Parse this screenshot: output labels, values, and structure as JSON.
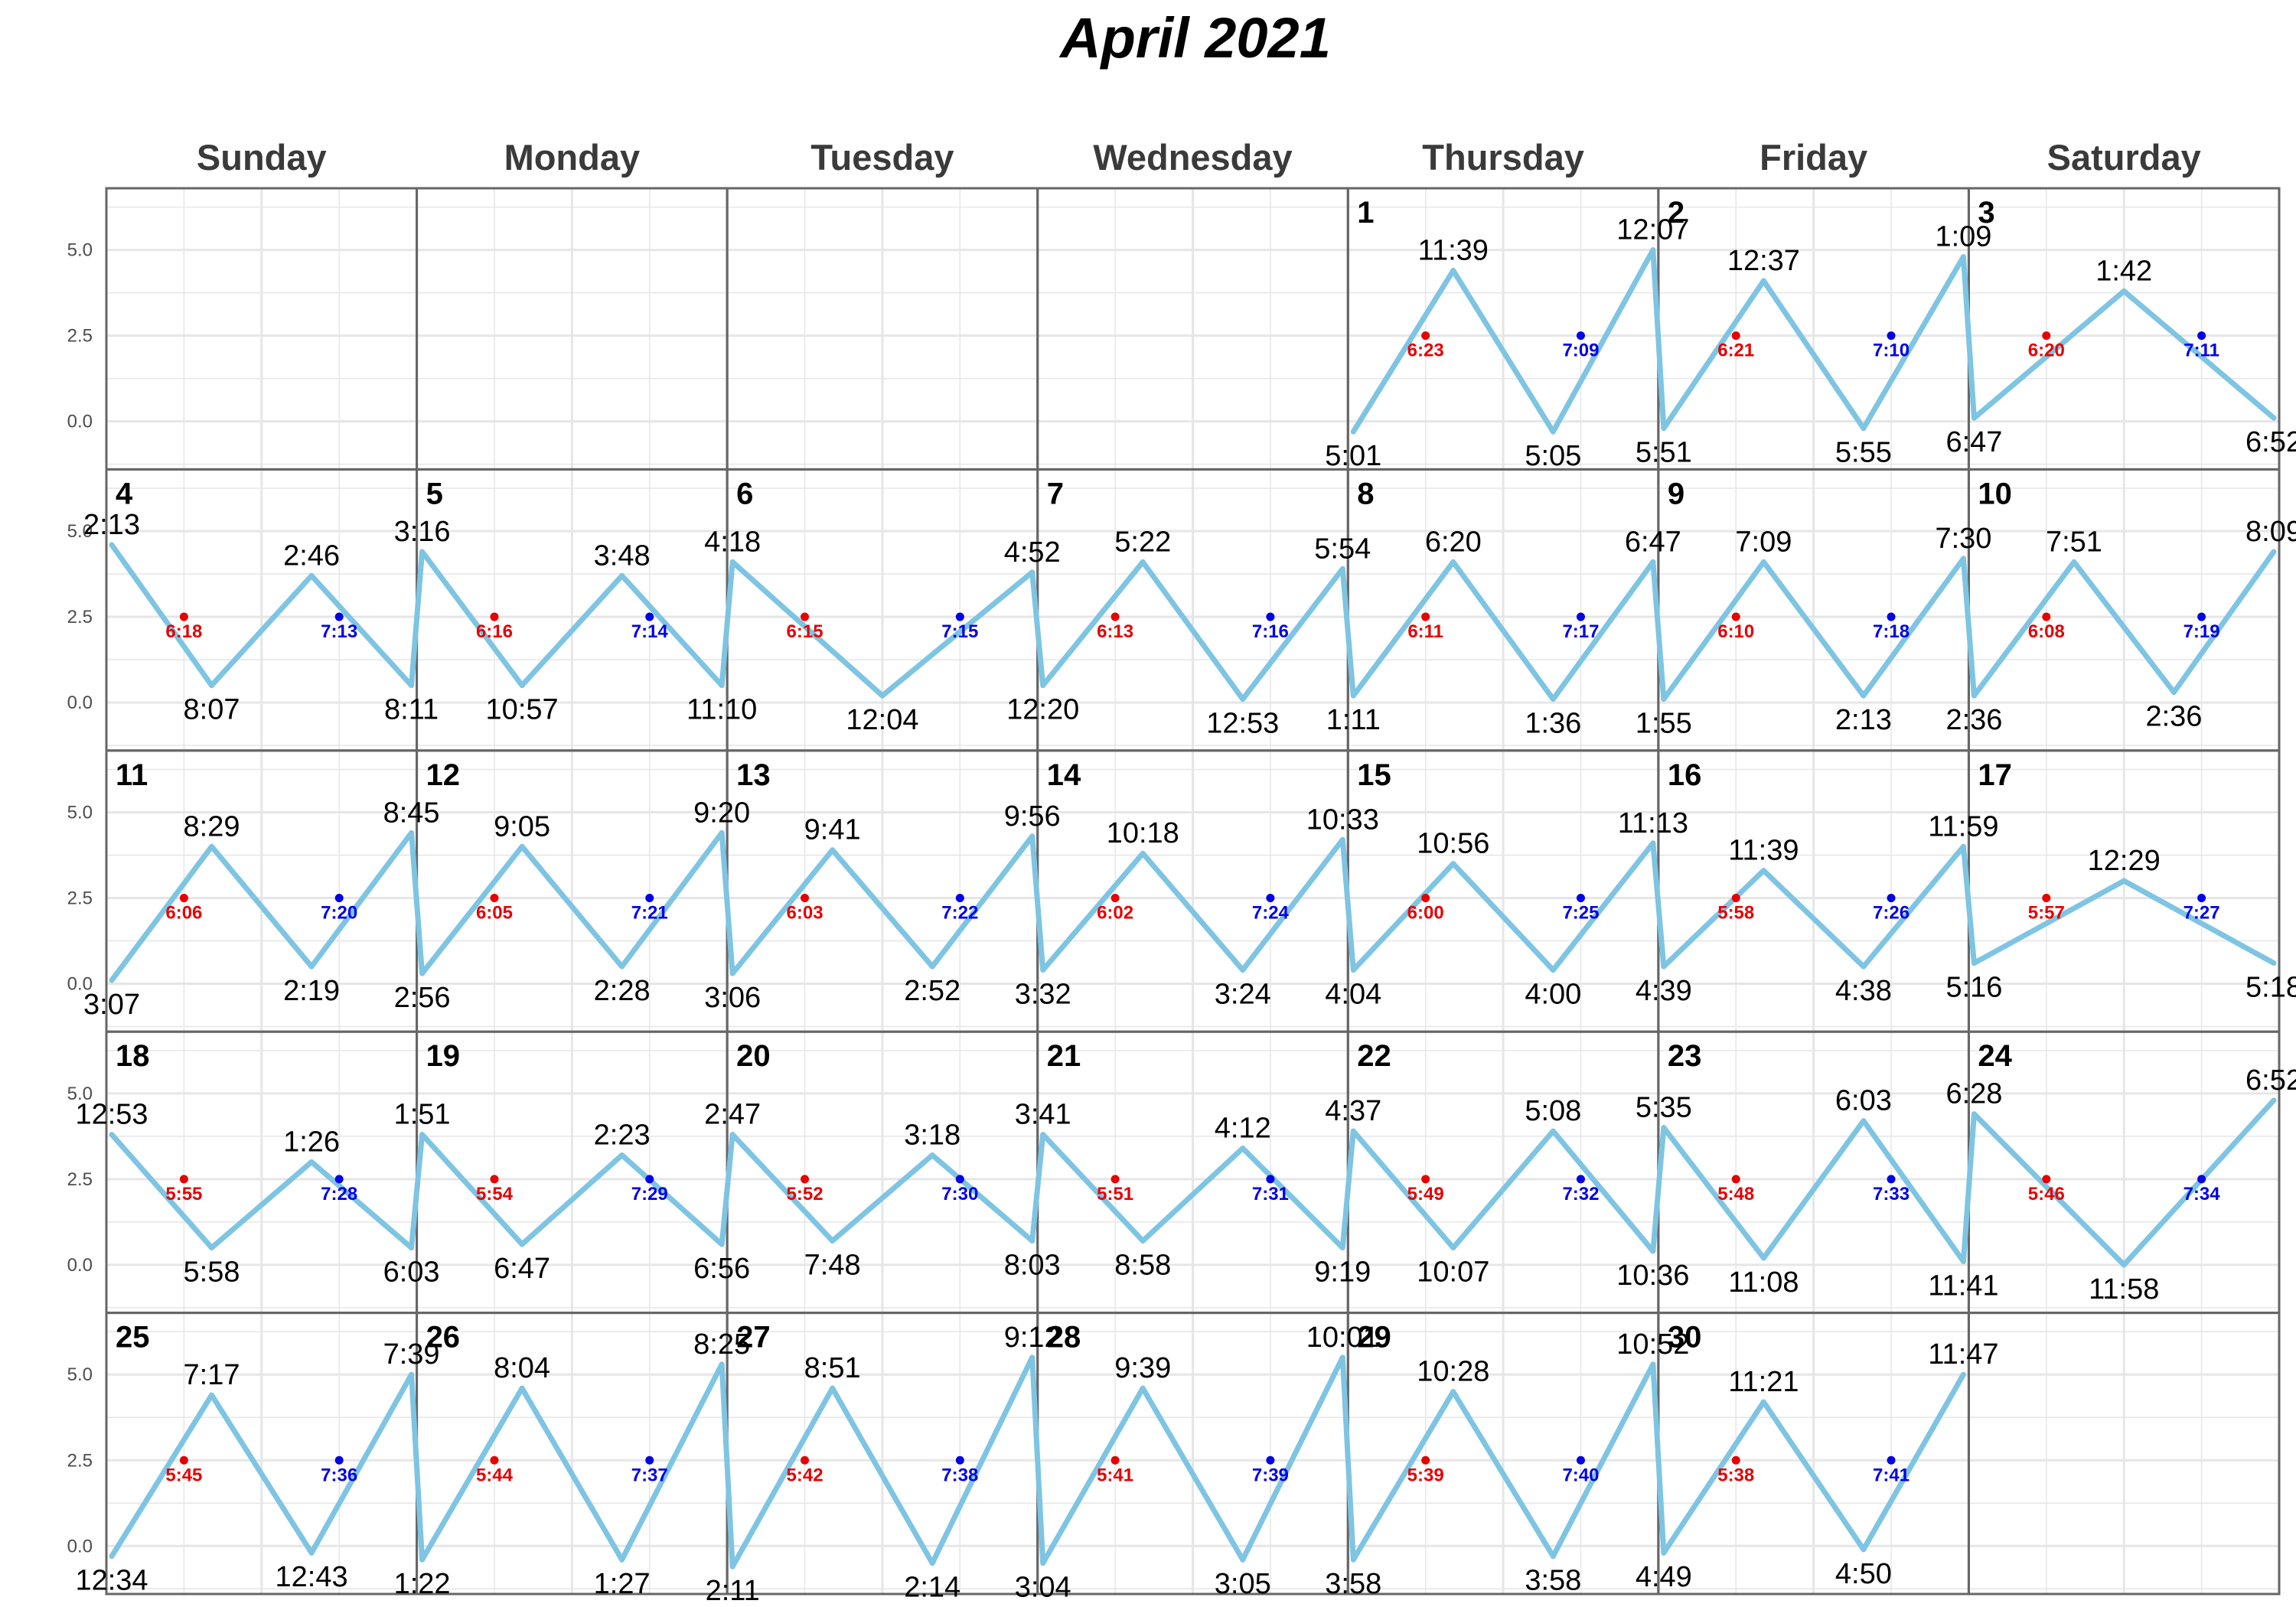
{
  "title": "April 2021",
  "weekdays": [
    "Sunday",
    "Monday",
    "Tuesday",
    "Wednesday",
    "Thursday",
    "Friday",
    "Saturday"
  ],
  "chart_data": {
    "type": "line",
    "layout": "calendar",
    "title": "April 2021",
    "ylim": [
      -1.4,
      6.8
    ],
    "yticks": [
      0.0,
      2.5,
      5.0
    ],
    "ytick_labels": [
      "0.0",
      "2.5",
      "5.0"
    ],
    "grid": true,
    "colors": {
      "tide_line": "#7EC4E3",
      "sunrise": "#E60000",
      "sunset": "#0000E6",
      "grid": "#E6E6E6",
      "border": "#666666"
    },
    "first_weekday_index": 4,
    "days": [
      {
        "day": "1",
        "sunrise": "6:23",
        "sunset": "7:09",
        "tides": [
          {
            "t": "5:01",
            "h": -0.3
          },
          {
            "t": "11:39",
            "h": 4.4
          },
          {
            "t": "5:05",
            "h": -0.3
          },
          {
            "t": "12:07",
            "h": 5.0
          }
        ]
      },
      {
        "day": "2",
        "sunrise": "6:21",
        "sunset": "7:10",
        "tides": [
          {
            "t": "5:51",
            "h": -0.2
          },
          {
            "t": "12:37",
            "h": 4.1
          },
          {
            "t": "5:55",
            "h": -0.2
          },
          {
            "t": "1:09",
            "h": 4.8
          }
        ]
      },
      {
        "day": "3",
        "sunrise": "6:20",
        "sunset": "7:11",
        "tides": [
          {
            "t": "6:47",
            "h": 0.1
          },
          {
            "t": "1:42",
            "h": 3.8
          },
          {
            "t": "6:52",
            "h": 0.1
          }
        ]
      },
      {
        "day": "4",
        "sunrise": "6:18",
        "sunset": "7:13",
        "tides": [
          {
            "t": "2:13",
            "h": 4.6
          },
          {
            "t": "8:07",
            "h": 0.5
          },
          {
            "t": "2:46",
            "h": 3.7
          },
          {
            "t": "8:11",
            "h": 0.5
          }
        ]
      },
      {
        "day": "5",
        "sunrise": "6:16",
        "sunset": "7:14",
        "tides": [
          {
            "t": "3:16",
            "h": 4.4
          },
          {
            "t": "10:57",
            "h": 0.5
          },
          {
            "t": "3:48",
            "h": 3.7
          },
          {
            "t": "11:10",
            "h": 0.5
          }
        ]
      },
      {
        "day": "6",
        "sunrise": "6:15",
        "sunset": "7:15",
        "tides": [
          {
            "t": "4:18",
            "h": 4.1
          },
          {
            "t": "12:04",
            "h": 0.2
          },
          {
            "t": "4:52",
            "h": 3.8
          }
        ]
      },
      {
        "day": "7",
        "sunrise": "6:13",
        "sunset": "7:16",
        "tides": [
          {
            "t": "12:20",
            "h": 0.5
          },
          {
            "t": "5:22",
            "h": 4.1
          },
          {
            "t": "12:53",
            "h": 0.1
          },
          {
            "t": "5:54",
            "h": 3.9
          }
        ]
      },
      {
        "day": "8",
        "sunrise": "6:11",
        "sunset": "7:17",
        "tides": [
          {
            "t": "1:11",
            "h": 0.2
          },
          {
            "t": "6:20",
            "h": 4.1
          },
          {
            "t": "1:36",
            "h": 0.1
          },
          {
            "t": "6:47",
            "h": 4.1
          }
        ]
      },
      {
        "day": "9",
        "sunrise": "6:10",
        "sunset": "7:18",
        "tides": [
          {
            "t": "1:55",
            "h": 0.1
          },
          {
            "t": "7:09",
            "h": 4.1
          },
          {
            "t": "2:13",
            "h": 0.2
          },
          {
            "t": "7:30",
            "h": 4.2
          }
        ]
      },
      {
        "day": "10",
        "sunrise": "6:08",
        "sunset": "7:19",
        "tides": [
          {
            "t": "2:36",
            "h": 0.2
          },
          {
            "t": "7:51",
            "h": 4.1
          },
          {
            "t": "2:36",
            "h": 0.3
          },
          {
            "t": "8:09",
            "h": 4.4
          }
        ]
      },
      {
        "day": "11",
        "sunrise": "6:06",
        "sunset": "7:20",
        "tides": [
          {
            "t": "3:07",
            "h": 0.1
          },
          {
            "t": "8:29",
            "h": 4.0
          },
          {
            "t": "2:19",
            "h": 0.5
          },
          {
            "t": "8:45",
            "h": 4.4
          }
        ]
      },
      {
        "day": "12",
        "sunrise": "6:05",
        "sunset": "7:21",
        "tides": [
          {
            "t": "2:56",
            "h": 0.3
          },
          {
            "t": "9:05",
            "h": 4.0
          },
          {
            "t": "2:28",
            "h": 0.5
          },
          {
            "t": "9:20",
            "h": 4.4
          }
        ]
      },
      {
        "day": "13",
        "sunrise": "6:03",
        "sunset": "7:22",
        "tides": [
          {
            "t": "3:06",
            "h": 0.3
          },
          {
            "t": "9:41",
            "h": 3.9
          },
          {
            "t": "2:52",
            "h": 0.5
          },
          {
            "t": "9:56",
            "h": 4.3
          }
        ]
      },
      {
        "day": "14",
        "sunrise": "6:02",
        "sunset": "7:24",
        "tides": [
          {
            "t": "3:32",
            "h": 0.4
          },
          {
            "t": "10:18",
            "h": 3.8
          },
          {
            "t": "3:24",
            "h": 0.4
          },
          {
            "t": "10:33",
            "h": 4.2
          }
        ]
      },
      {
        "day": "15",
        "sunrise": "6:00",
        "sunset": "7:25",
        "tides": [
          {
            "t": "4:04",
            "h": 0.4
          },
          {
            "t": "10:56",
            "h": 3.5
          },
          {
            "t": "4:00",
            "h": 0.4
          },
          {
            "t": "11:13",
            "h": 4.1
          }
        ]
      },
      {
        "day": "16",
        "sunrise": "5:58",
        "sunset": "7:26",
        "tides": [
          {
            "t": "4:39",
            "h": 0.5
          },
          {
            "t": "11:39",
            "h": 3.3
          },
          {
            "t": "4:38",
            "h": 0.5
          },
          {
            "t": "11:59",
            "h": 4.0
          }
        ]
      },
      {
        "day": "17",
        "sunrise": "5:57",
        "sunset": "7:27",
        "tides": [
          {
            "t": "5:16",
            "h": 0.6
          },
          {
            "t": "12:29",
            "h": 3.0
          },
          {
            "t": "5:18",
            "h": 0.6
          }
        ]
      },
      {
        "day": "18",
        "sunrise": "5:55",
        "sunset": "7:28",
        "tides": [
          {
            "t": "12:53",
            "h": 3.8
          },
          {
            "t": "5:58",
            "h": 0.5
          },
          {
            "t": "1:26",
            "h": 3.0
          },
          {
            "t": "6:03",
            "h": 0.5
          }
        ]
      },
      {
        "day": "19",
        "sunrise": "5:54",
        "sunset": "7:29",
        "tides": [
          {
            "t": "1:51",
            "h": 3.8
          },
          {
            "t": "6:47",
            "h": 0.6
          },
          {
            "t": "2:23",
            "h": 3.2
          },
          {
            "t": "6:56",
            "h": 0.6
          }
        ]
      },
      {
        "day": "20",
        "sunrise": "5:52",
        "sunset": "7:30",
        "tides": [
          {
            "t": "2:47",
            "h": 3.8
          },
          {
            "t": "7:48",
            "h": 0.7
          },
          {
            "t": "3:18",
            "h": 3.2
          },
          {
            "t": "8:03",
            "h": 0.7
          }
        ]
      },
      {
        "day": "21",
        "sunrise": "5:51",
        "sunset": "7:31",
        "tides": [
          {
            "t": "3:41",
            "h": 3.8
          },
          {
            "t": "8:58",
            "h": 0.7
          },
          {
            "t": "4:12",
            "h": 3.4
          },
          {
            "t": "9:19",
            "h": 0.5
          }
        ]
      },
      {
        "day": "22",
        "sunrise": "5:49",
        "sunset": "7:32",
        "tides": [
          {
            "t": "4:37",
            "h": 3.9
          },
          {
            "t": "10:07",
            "h": 0.5
          },
          {
            "t": "5:08",
            "h": 3.9
          },
          {
            "t": "10:36",
            "h": 0.4
          }
        ]
      },
      {
        "day": "23",
        "sunrise": "5:48",
        "sunset": "7:33",
        "tides": [
          {
            "t": "5:35",
            "h": 4.0
          },
          {
            "t": "11:08",
            "h": 0.2
          },
          {
            "t": "6:03",
            "h": 4.2
          },
          {
            "t": "11:41",
            "h": 0.1
          }
        ]
      },
      {
        "day": "24",
        "sunrise": "5:46",
        "sunset": "7:34",
        "tides": [
          {
            "t": "6:28",
            "h": 4.4
          },
          {
            "t": "11:58",
            "h": 0.0
          },
          {
            "t": "6:52",
            "h": 4.8
          }
        ]
      },
      {
        "day": "25",
        "sunrise": "5:45",
        "sunset": "7:36",
        "tides": [
          {
            "t": "12:34",
            "h": -0.3
          },
          {
            "t": "7:17",
            "h": 4.4
          },
          {
            "t": "12:43",
            "h": -0.2
          },
          {
            "t": "7:39",
            "h": 5.0
          }
        ]
      },
      {
        "day": "26",
        "sunrise": "5:44",
        "sunset": "7:37",
        "tides": [
          {
            "t": "1:22",
            "h": -0.4
          },
          {
            "t": "8:04",
            "h": 4.6
          },
          {
            "t": "1:27",
            "h": -0.4
          },
          {
            "t": "8:25",
            "h": 5.3
          }
        ]
      },
      {
        "day": "27",
        "sunrise": "5:42",
        "sunset": "7:38",
        "tides": [
          {
            "t": "2:11",
            "h": -0.6
          },
          {
            "t": "8:51",
            "h": 4.6
          },
          {
            "t": "2:14",
            "h": -0.5
          },
          {
            "t": "9:12",
            "h": 5.5
          }
        ]
      },
      {
        "day": "28",
        "sunrise": "5:41",
        "sunset": "7:39",
        "tides": [
          {
            "t": "3:04",
            "h": -0.5
          },
          {
            "t": "9:39",
            "h": 4.6
          },
          {
            "t": "3:05",
            "h": -0.4
          },
          {
            "t": "10:01",
            "h": 5.5
          }
        ]
      },
      {
        "day": "29",
        "sunrise": "5:39",
        "sunset": "7:40",
        "tides": [
          {
            "t": "3:58",
            "h": -0.4
          },
          {
            "t": "10:28",
            "h": 4.5
          },
          {
            "t": "3:58",
            "h": -0.3
          },
          {
            "t": "10:52",
            "h": 5.3
          }
        ]
      },
      {
        "day": "30",
        "sunrise": "5:38",
        "sunset": "7:41",
        "tides": [
          {
            "t": "4:49",
            "h": -0.2
          },
          {
            "t": "11:21",
            "h": 4.2
          },
          {
            "t": "4:50",
            "h": -0.1
          },
          {
            "t": "11:47",
            "h": 5.0
          }
        ]
      }
    ]
  }
}
